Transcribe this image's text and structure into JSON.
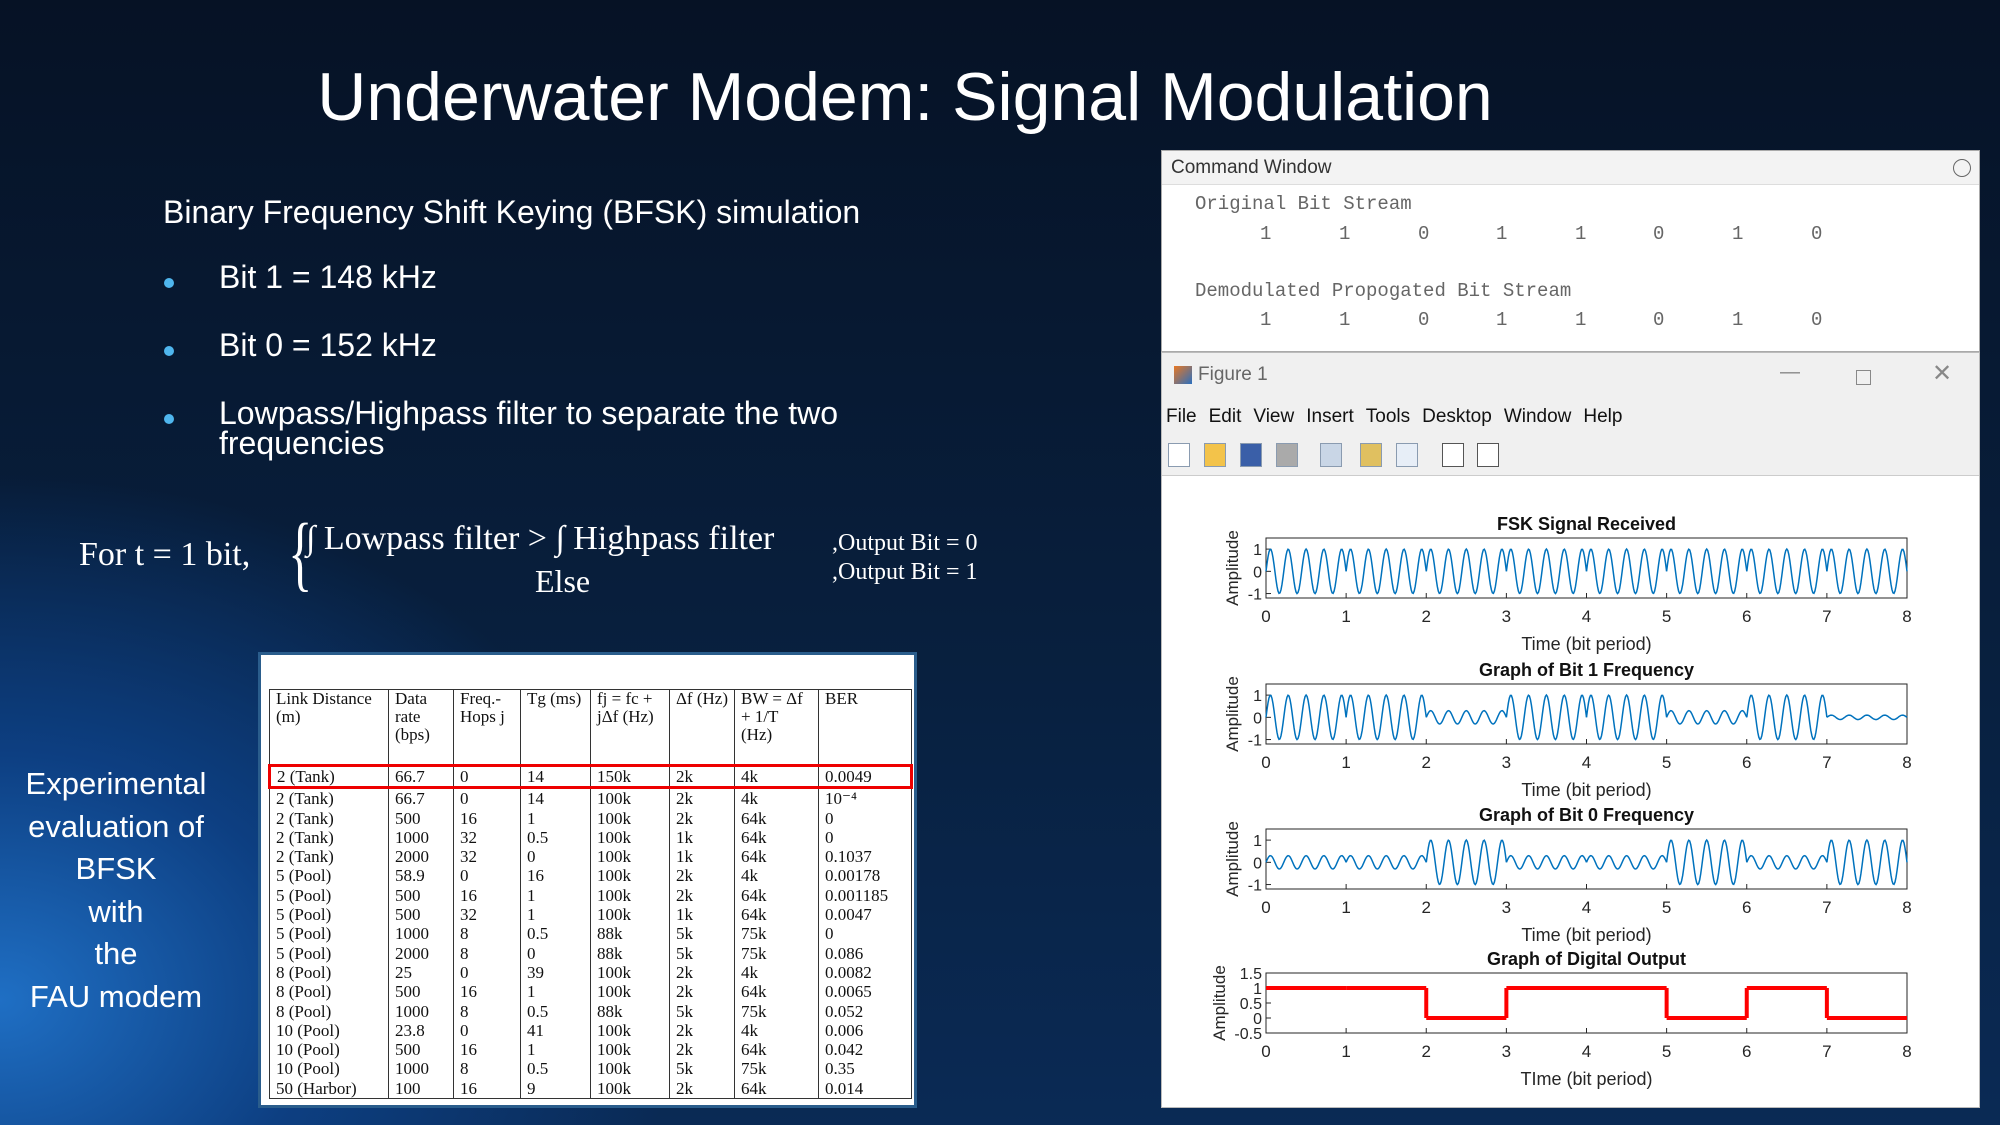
{
  "slide": {
    "title": "Underwater Modem: Signal Modulation",
    "subtitle": "Binary Frequency Shift Keying (BFSK) simulation",
    "bullets": [
      "Bit 1 = 148 kHz",
      "Bit 0 = 152 kHz",
      "Lowpass/Highpass filter to separate the two frequencies"
    ],
    "formula": {
      "lhs": "For t  =  1 bit,",
      "condition": "∫ Lowpass filter  >  ∫ Highpass filter",
      "else": "Else",
      "output_1": ",Output Bit = 0",
      "output_2": ",Output Bit = 1"
    },
    "side_text": [
      "Experimental",
      "evaluation of",
      "BFSK",
      "with",
      "the",
      "FAU modem"
    ]
  },
  "table": {
    "headers": [
      "Link Distance (m)",
      "Data rate (bps)",
      "Freq.-Hops j",
      "Tg (ms)",
      "fj = fc + jΔf (Hz)",
      "Δf (Hz)",
      "BW = Δf + 1/T (Hz)",
      "BER"
    ],
    "rows": [
      [
        "2 (Tank)",
        "66.7",
        "0",
        "14",
        "150k",
        "2k",
        "4k",
        "0.0049"
      ],
      [
        "2 (Tank)",
        "66.7",
        "0",
        "14",
        "100k",
        "2k",
        "4k",
        "10⁻⁴"
      ],
      [
        "2 (Tank)",
        "500",
        "16",
        "1",
        "100k",
        "2k",
        "64k",
        "0"
      ],
      [
        "2 (Tank)",
        "1000",
        "32",
        "0.5",
        "100k",
        "1k",
        "64k",
        "0"
      ],
      [
        "2 (Tank)",
        "2000",
        "32",
        "0",
        "100k",
        "1k",
        "64k",
        "0.1037"
      ],
      [
        "5 (Pool)",
        "58.9",
        "0",
        "16",
        "100k",
        "2k",
        "4k",
        "0.00178"
      ],
      [
        "5 (Pool)",
        "500",
        "16",
        "1",
        "100k",
        "2k",
        "64k",
        "0.001185"
      ],
      [
        "5 (Pool)",
        "500",
        "32",
        "1",
        "100k",
        "1k",
        "64k",
        "0.0047"
      ],
      [
        "5 (Pool)",
        "1000",
        "8",
        "0.5",
        "88k",
        "5k",
        "75k",
        "0"
      ],
      [
        "5 (Pool)",
        "2000",
        "8",
        "0",
        "88k",
        "5k",
        "75k",
        "0.086"
      ],
      [
        "8 (Pool)",
        "25",
        "0",
        "39",
        "100k",
        "2k",
        "4k",
        "0.0082"
      ],
      [
        "8 (Pool)",
        "500",
        "16",
        "1",
        "100k",
        "2k",
        "64k",
        "0.0065"
      ],
      [
        "8 (Pool)",
        "1000",
        "8",
        "0.5",
        "88k",
        "5k",
        "75k",
        "0.052"
      ],
      [
        "10 (Pool)",
        "23.8",
        "0",
        "41",
        "100k",
        "2k",
        "4k",
        "0.006"
      ],
      [
        "10 (Pool)",
        "500",
        "16",
        "1",
        "100k",
        "2k",
        "64k",
        "0.042"
      ],
      [
        "10 (Pool)",
        "1000",
        "8",
        "0.5",
        "100k",
        "5k",
        "75k",
        "0.35"
      ],
      [
        "50 (Harbor)",
        "100",
        "16",
        "9",
        "100k",
        "2k",
        "64k",
        "0.014"
      ]
    ]
  },
  "command_window": {
    "title": "Command Window",
    "label_1": "Original Bit Stream",
    "bits_1": [
      1,
      1,
      0,
      1,
      1,
      0,
      1,
      0
    ],
    "label_2": "Demodulated Propogated Bit Stream",
    "bits_2": [
      1,
      1,
      0,
      1,
      1,
      0,
      1,
      0
    ]
  },
  "figure": {
    "title": "Figure 1",
    "menu": [
      "File",
      "Edit",
      "View",
      "Insert",
      "Tools",
      "Desktop",
      "Window",
      "Help"
    ]
  },
  "chart_data": [
    {
      "type": "line",
      "title": "FSK Signal Received",
      "x_label": "Time (bit period)",
      "y_label": "Amplitude",
      "values": [
        1,
        1,
        1,
        1,
        1,
        1,
        1,
        1
      ],
      "color": "#0072bd",
      "xlim": [
        0,
        8
      ],
      "xticks": [
        0,
        1,
        2,
        3,
        4,
        5,
        6,
        7,
        8
      ],
      "ylim": [
        -1.2,
        1.5
      ],
      "yticks": [
        -1,
        0,
        1
      ]
    },
    {
      "type": "line",
      "title": "Graph of Bit 1 Frequency",
      "x_label": "Time (bit period)",
      "y_label": "Amplitude",
      "values": [
        1,
        1,
        0.3,
        1,
        1,
        0.3,
        1,
        0.1
      ],
      "color": "#0072bd",
      "xlim": [
        0,
        8
      ],
      "xticks": [
        0,
        1,
        2,
        3,
        4,
        5,
        6,
        7,
        8
      ],
      "ylim": [
        -1.2,
        1.5
      ],
      "yticks": [
        -1,
        0,
        1
      ]
    },
    {
      "type": "line",
      "title": "Graph of Bit 0 Frequency",
      "x_label": "Time (bit period)",
      "y_label": "Amplitude",
      "values": [
        0.3,
        0.3,
        1,
        0.3,
        0.3,
        1,
        0.3,
        1
      ],
      "color": "#0072bd",
      "xlim": [
        0,
        8
      ],
      "xticks": [
        0,
        1,
        2,
        3,
        4,
        5,
        6,
        7,
        8
      ],
      "ylim": [
        -1.2,
        1.5
      ],
      "yticks": [
        -1,
        0,
        1
      ]
    },
    {
      "type": "step",
      "title": "Graph of Digital Output",
      "x_label": "TIme (bit period)",
      "y_label": "Amplitude",
      "values": [
        1,
        1,
        0,
        1,
        1,
        0,
        1,
        0
      ],
      "color": "#ff0000",
      "xlim": [
        0,
        8
      ],
      "xticks": [
        0,
        1,
        2,
        3,
        4,
        5,
        6,
        7,
        8
      ],
      "ylim": [
        -0.5,
        1.5
      ],
      "yticks": [
        -0.5,
        0,
        0.5,
        1,
        1.5
      ]
    }
  ]
}
